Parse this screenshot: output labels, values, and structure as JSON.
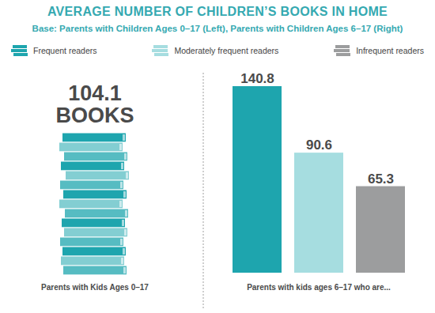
{
  "title": "AVERAGE NUMBER OF CHILDREN’S BOOKS IN HOME",
  "subtitle": "Base: Parents with Children Ages 0–17 (Left), Parents with Children Ages 6–17 (Right)",
  "chart_data": [
    {
      "type": "figure",
      "value": 104.1,
      "unit": "BOOKS",
      "caption": "Parents with Kids Ages 0–17",
      "color": "#1ea5ae"
    },
    {
      "type": "bar",
      "categories": [
        "Frequent readers",
        "Moderately frequent readers",
        "Infrequent readers"
      ],
      "values": [
        140.8,
        90.6,
        65.3
      ],
      "colors": [
        "#1ea5ae",
        "#a6dde0",
        "#9c9d9e"
      ],
      "data_labels": true,
      "tick_labels": false,
      "legend": "top",
      "caption": "Parents with kids ages 6–17 who are..."
    }
  ]
}
